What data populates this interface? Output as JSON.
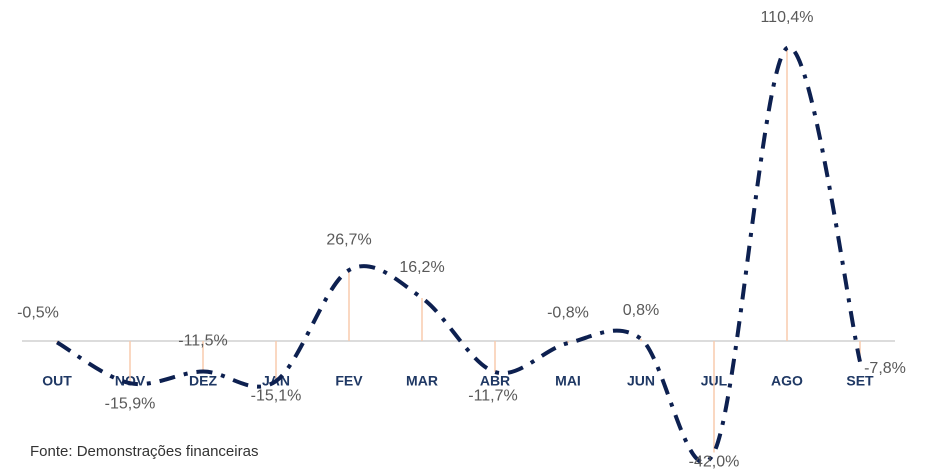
{
  "chart_data": {
    "type": "line",
    "categories": [
      "OUT",
      "NOV",
      "DEZ",
      "JAN",
      "FEV",
      "MAR",
      "ABR",
      "MAI",
      "JUN",
      "JUL",
      "AGO",
      "SET"
    ],
    "series": [
      {
        "color": "#0d2050",
        "values": [
          -0.5,
          -15.9,
          -11.5,
          -15.1,
          26.7,
          16.2,
          -11.7,
          -0.8,
          0.8,
          -42.0,
          110.4,
          -7.8
        ],
        "value_labels": [
          "-0,5%",
          "-15,9%",
          "-11,5%",
          "-15,1%",
          "26,7%",
          "16,2%",
          "-11,7%",
          "-0,8%",
          "0,8%",
          "-42,0%",
          "110,4%",
          "-7,8%"
        ]
      }
    ],
    "drop_line_color": "#f8cbad",
    "ylim": [
      -50,
      120
    ],
    "source": "Fonte: Demonstrações financeiras"
  }
}
